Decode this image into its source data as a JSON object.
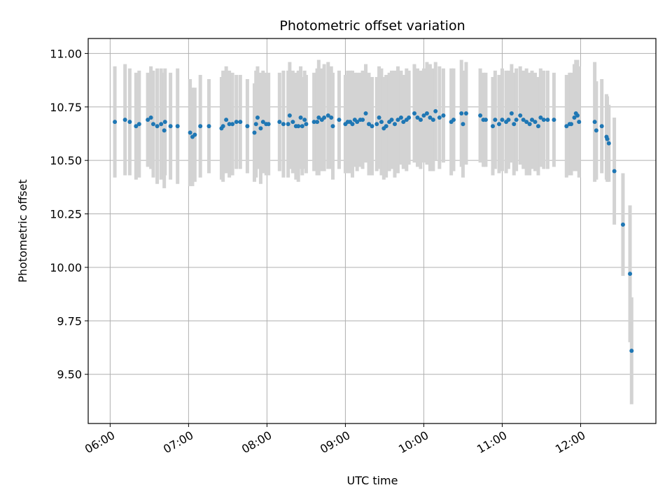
{
  "chart_data": {
    "type": "scatter",
    "title": "Photometric offset variation",
    "xlabel": "UTC time",
    "ylabel": "Photometric offset",
    "grid": true,
    "legend": "none",
    "x_unit": "UTC hours",
    "xlim": [
      5.72,
      12.96
    ],
    "ylim": [
      9.27,
      11.07
    ],
    "x_ticks": [
      {
        "value": 6,
        "label": "06:00"
      },
      {
        "value": 7,
        "label": "07:00"
      },
      {
        "value": 8,
        "label": "08:00"
      },
      {
        "value": 9,
        "label": "09:00"
      },
      {
        "value": 10,
        "label": "10:00"
      },
      {
        "value": 11,
        "label": "11:00"
      },
      {
        "value": 12,
        "label": "12:00"
      }
    ],
    "y_ticks": [
      {
        "value": 9.5,
        "label": "9.50"
      },
      {
        "value": 9.75,
        "label": "9.75"
      },
      {
        "value": 10.0,
        "label": "10.00"
      },
      {
        "value": 10.25,
        "label": "10.25"
      },
      {
        "value": 10.5,
        "label": "10.50"
      },
      {
        "value": 10.75,
        "label": "10.75"
      },
      {
        "value": 11.0,
        "label": "11.00"
      }
    ],
    "colors": {
      "point": "#1f77b4",
      "errorbar": "#d3d3d3",
      "grid": "#b0b0b0"
    },
    "series": [
      {
        "columns": [
          "x_hours",
          "y",
          "err"
        ],
        "points": [
          [
            6.06,
            10.68,
            0.26
          ],
          [
            6.19,
            10.69,
            0.26
          ],
          [
            6.25,
            10.68,
            0.25
          ],
          [
            6.33,
            10.66,
            0.25
          ],
          [
            6.37,
            10.67,
            0.25
          ],
          [
            6.48,
            10.69,
            0.22
          ],
          [
            6.52,
            10.7,
            0.24
          ],
          [
            6.55,
            10.67,
            0.25
          ],
          [
            6.6,
            10.66,
            0.27
          ],
          [
            6.65,
            10.67,
            0.26
          ],
          [
            6.69,
            10.64,
            0.27
          ],
          [
            6.7,
            10.68,
            0.25
          ],
          [
            6.77,
            10.66,
            0.25
          ],
          [
            6.86,
            10.66,
            0.27
          ],
          [
            7.02,
            10.63,
            0.25
          ],
          [
            7.05,
            10.61,
            0.23
          ],
          [
            7.08,
            10.62,
            0.22
          ],
          [
            7.15,
            10.66,
            0.24
          ],
          [
            7.26,
            10.66,
            0.22
          ],
          [
            7.42,
            10.65,
            0.24
          ],
          [
            7.44,
            10.66,
            0.26
          ],
          [
            7.48,
            10.69,
            0.25
          ],
          [
            7.52,
            10.67,
            0.25
          ],
          [
            7.56,
            10.67,
            0.24
          ],
          [
            7.61,
            10.68,
            0.22
          ],
          [
            7.66,
            10.68,
            0.22
          ],
          [
            7.75,
            10.66,
            0.22
          ],
          [
            7.84,
            10.63,
            0.23
          ],
          [
            7.86,
            10.67,
            0.25
          ],
          [
            7.88,
            10.7,
            0.24
          ],
          [
            7.92,
            10.65,
            0.26
          ],
          [
            7.95,
            10.68,
            0.24
          ],
          [
            7.99,
            10.67,
            0.24
          ],
          [
            8.02,
            10.67,
            0.24
          ],
          [
            8.16,
            10.68,
            0.23
          ],
          [
            8.21,
            10.67,
            0.25
          ],
          [
            8.27,
            10.67,
            0.25
          ],
          [
            8.29,
            10.71,
            0.25
          ],
          [
            8.33,
            10.68,
            0.24
          ],
          [
            8.37,
            10.66,
            0.25
          ],
          [
            8.4,
            10.66,
            0.26
          ],
          [
            8.43,
            10.7,
            0.24
          ],
          [
            8.45,
            10.66,
            0.23
          ],
          [
            8.48,
            10.69,
            0.23
          ],
          [
            8.5,
            10.67,
            0.23
          ],
          [
            8.6,
            10.68,
            0.23
          ],
          [
            8.64,
            10.68,
            0.25
          ],
          [
            8.66,
            10.7,
            0.27
          ],
          [
            8.7,
            10.69,
            0.24
          ],
          [
            8.73,
            10.7,
            0.25
          ],
          [
            8.78,
            10.71,
            0.25
          ],
          [
            8.82,
            10.7,
            0.24
          ],
          [
            8.84,
            10.66,
            0.25
          ],
          [
            8.92,
            10.69,
            0.23
          ],
          [
            9.0,
            10.67,
            0.23
          ],
          [
            9.03,
            10.68,
            0.24
          ],
          [
            9.06,
            10.68,
            0.24
          ],
          [
            9.09,
            10.67,
            0.25
          ],
          [
            9.12,
            10.69,
            0.22
          ],
          [
            9.15,
            10.68,
            0.23
          ],
          [
            9.19,
            10.69,
            0.22
          ],
          [
            9.22,
            10.69,
            0.23
          ],
          [
            9.26,
            10.72,
            0.23
          ],
          [
            9.3,
            10.67,
            0.24
          ],
          [
            9.34,
            10.66,
            0.23
          ],
          [
            9.4,
            10.67,
            0.22
          ],
          [
            9.43,
            10.7,
            0.24
          ],
          [
            9.46,
            10.68,
            0.25
          ],
          [
            9.49,
            10.65,
            0.24
          ],
          [
            9.52,
            10.66,
            0.24
          ],
          [
            9.56,
            10.68,
            0.23
          ],
          [
            9.59,
            10.69,
            0.23
          ],
          [
            9.63,
            10.67,
            0.25
          ],
          [
            9.67,
            10.69,
            0.25
          ],
          [
            9.71,
            10.7,
            0.22
          ],
          [
            9.74,
            10.68,
            0.22
          ],
          [
            9.78,
            10.69,
            0.24
          ],
          [
            9.81,
            10.7,
            0.22
          ],
          [
            9.88,
            10.72,
            0.23
          ],
          [
            9.92,
            10.7,
            0.23
          ],
          [
            9.96,
            10.69,
            0.23
          ],
          [
            10.0,
            10.71,
            0.22
          ],
          [
            10.04,
            10.72,
            0.24
          ],
          [
            10.08,
            10.7,
            0.25
          ],
          [
            10.12,
            10.69,
            0.24
          ],
          [
            10.15,
            10.73,
            0.23
          ],
          [
            10.2,
            10.7,
            0.24
          ],
          [
            10.25,
            10.71,
            0.22
          ],
          [
            10.35,
            10.68,
            0.25
          ],
          [
            10.38,
            10.69,
            0.24
          ],
          [
            10.48,
            10.72,
            0.25
          ],
          [
            10.5,
            10.67,
            0.25
          ],
          [
            10.54,
            10.72,
            0.24
          ],
          [
            10.72,
            10.71,
            0.22
          ],
          [
            10.76,
            10.69,
            0.22
          ],
          [
            10.79,
            10.69,
            0.22
          ],
          [
            10.88,
            10.66,
            0.23
          ],
          [
            10.91,
            10.69,
            0.23
          ],
          [
            10.96,
            10.67,
            0.23
          ],
          [
            11.0,
            10.69,
            0.24
          ],
          [
            11.05,
            10.68,
            0.24
          ],
          [
            11.08,
            10.69,
            0.23
          ],
          [
            11.12,
            10.72,
            0.23
          ],
          [
            11.15,
            10.67,
            0.24
          ],
          [
            11.18,
            10.69,
            0.24
          ],
          [
            11.23,
            10.71,
            0.23
          ],
          [
            11.27,
            10.69,
            0.23
          ],
          [
            11.31,
            10.68,
            0.25
          ],
          [
            11.35,
            10.67,
            0.24
          ],
          [
            11.38,
            10.69,
            0.23
          ],
          [
            11.42,
            10.68,
            0.23
          ],
          [
            11.46,
            10.66,
            0.23
          ],
          [
            11.49,
            10.7,
            0.23
          ],
          [
            11.53,
            10.69,
            0.23
          ],
          [
            11.58,
            10.69,
            0.23
          ],
          [
            11.66,
            10.69,
            0.22
          ],
          [
            11.82,
            10.66,
            0.24
          ],
          [
            11.86,
            10.67,
            0.24
          ],
          [
            11.88,
            10.67,
            0.24
          ],
          [
            11.92,
            10.7,
            0.25
          ],
          [
            11.94,
            10.72,
            0.25
          ],
          [
            11.96,
            10.71,
            0.26
          ],
          [
            11.98,
            10.68,
            0.26
          ],
          [
            12.18,
            10.68,
            0.28
          ],
          [
            12.2,
            10.64,
            0.23
          ],
          [
            12.27,
            10.66,
            0.22
          ],
          [
            12.33,
            10.61,
            0.2
          ],
          [
            12.34,
            10.6,
            0.2
          ],
          [
            12.36,
            10.58,
            0.18
          ],
          [
            12.43,
            10.45,
            0.25
          ],
          [
            12.54,
            10.2,
            0.24
          ],
          [
            12.63,
            9.97,
            0.32
          ],
          [
            12.65,
            9.61,
            0.25
          ]
        ]
      }
    ]
  }
}
